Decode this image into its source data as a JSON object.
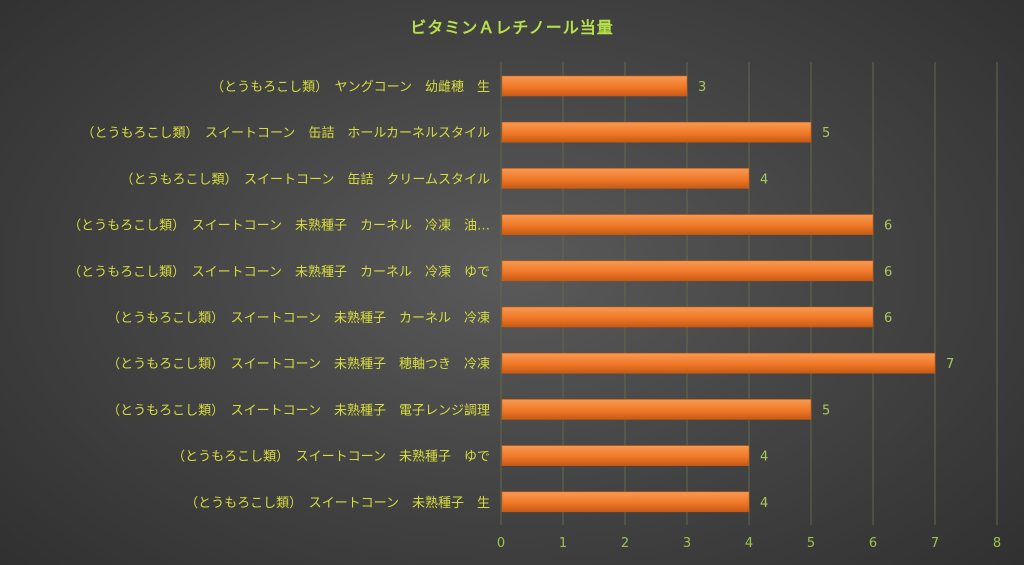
{
  "chart_data": {
    "type": "bar",
    "orientation": "horizontal",
    "title": "ビタミンＡレチノール当量",
    "categories": [
      "（とうもろこし類）　ヤングコーン　幼雌穂　生",
      "（とうもろこし類）　スイートコーン　缶詰　ホールカーネルスタイル",
      "（とうもろこし類）　スイートコーン　缶詰　クリームスタイル",
      "（とうもろこし類）　スイートコーン　未熟種子　カーネル　冷凍　油…",
      "（とうもろこし類）　スイートコーン　未熟種子　カーネル　冷凍　ゆで",
      "（とうもろこし類）　スイートコーン　未熟種子　カーネル　冷凍",
      "（とうもろこし類）　スイートコーン　未熟種子　穂軸つき　冷凍",
      "（とうもろこし類）　スイートコーン　未熟種子　電子レンジ調理",
      "（とうもろこし類）　スイートコーン　未熟種子　ゆで",
      "（とうもろこし類）　スイートコーン　未熟種子　生"
    ],
    "values": [
      3,
      5,
      4,
      6,
      6,
      6,
      7,
      5,
      4,
      4
    ],
    "xlim": [
      0,
      8
    ],
    "xticks": [
      "0",
      "1",
      "2",
      "3",
      "4",
      "5",
      "6",
      "7",
      "8"
    ],
    "grid": "vertical",
    "legend": "none",
    "xlabel": "",
    "ylabel": "",
    "colors": {
      "bar_fill": "#f07828",
      "bar_highlight": "#f79a52",
      "bar_edge": "#c85a14",
      "grid": "#5f6b4a",
      "title": "#b8e04a",
      "category_text": "#d6dc3e",
      "tick_text": "#9ec24f",
      "data_label_text": "#a8c85a"
    }
  }
}
